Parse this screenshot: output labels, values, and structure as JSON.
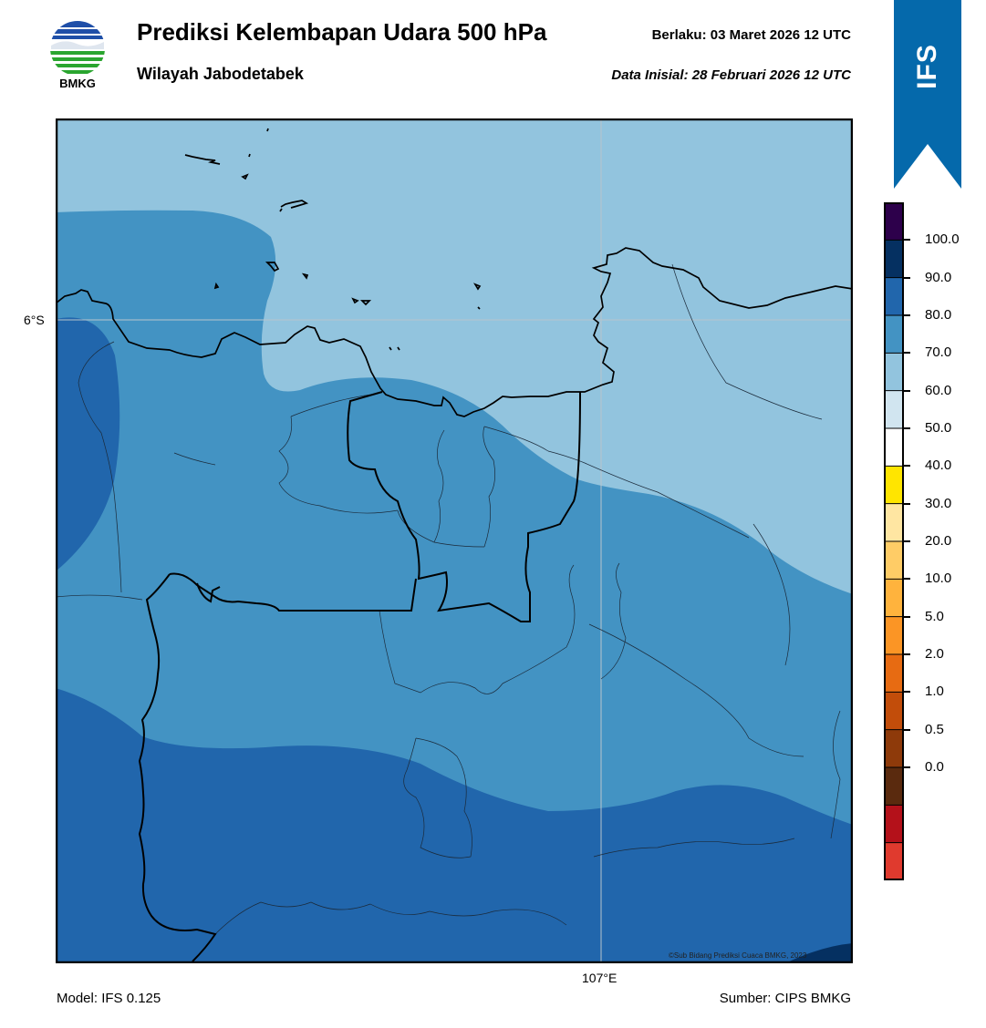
{
  "header": {
    "title": "Prediksi Kelembapan Udara 500 hPa",
    "subtitle": "Wilayah Jabodetabek",
    "valid": "Berlaku:  03 Maret 2026 12 UTC",
    "initial": "Data Inisial:  28 Februari 2026 12 UTC"
  },
  "logo": {
    "text": "BMKG",
    "icon": "bmkg-logo-icon"
  },
  "ribbon": {
    "label": "IFS",
    "color": "#0569ab"
  },
  "map": {
    "lat_label": "6°S",
    "lon_label": "107°E",
    "credit": "©Sub Bidang Prediksi Cuaca BMKG, 2023",
    "field_colors": {
      "band_60_70": "#92c4de",
      "band_70_80": "#4393c3",
      "band_80_90": "#2166ac",
      "band_90_100": "#053061"
    }
  },
  "colorbar": {
    "labels": [
      "100.0",
      "90.0",
      "80.0",
      "70.0",
      "60.0",
      "50.0",
      "40.0",
      "30.0",
      "20.0",
      "10.0",
      "5.0",
      "2.0",
      "1.0",
      "0.5",
      "0.0"
    ],
    "colors_top_to_bottom": [
      "#2d004b",
      "#053061",
      "#2166ac",
      "#4393c3",
      "#92c4de",
      "#d1e5f0",
      "#ffffff",
      "#ffe500",
      "#ffe6a2",
      "#ffcc66",
      "#ffb33d",
      "#fb9525",
      "#e76b12",
      "#c24d0a",
      "#8e3a0a",
      "#5a2a0e",
      "#b4111a",
      "#e03a2e"
    ]
  },
  "footer": {
    "model": "Model: IFS 0.125",
    "source": "Sumber: CIPS BMKG"
  }
}
